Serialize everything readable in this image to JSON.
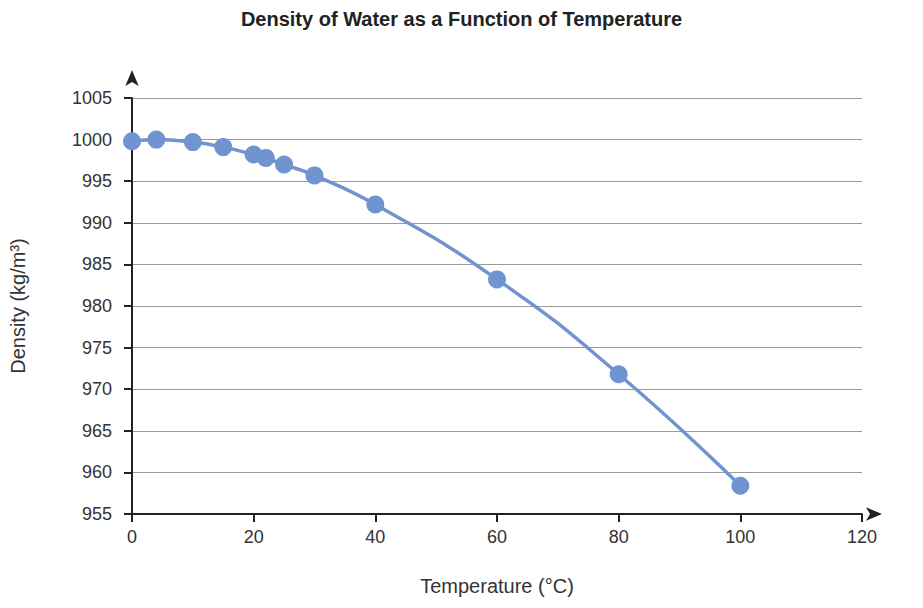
{
  "chart_data": {
    "type": "line",
    "title": "Density of Water as a Function of Temperature",
    "x_label": "Temperature (°C)",
    "y_label": "Density (kg/m³)",
    "x": [
      0,
      4,
      10,
      15,
      20,
      22,
      25,
      30,
      40,
      60,
      80,
      100
    ],
    "values": [
      999.8,
      1000.0,
      999.7,
      999.1,
      998.2,
      997.8,
      997.0,
      995.7,
      992.2,
      983.2,
      971.8,
      958.4
    ],
    "color": "#7094d0",
    "marker": "circle",
    "line_style": "smooth",
    "xlim": [
      0,
      120
    ],
    "xticks": [
      0,
      20,
      40,
      60,
      80,
      100,
      120
    ],
    "ylim": [
      955,
      1005
    ],
    "yticks": [
      955,
      960,
      965,
      970,
      975,
      980,
      985,
      990,
      995,
      1000,
      1005
    ],
    "grid": true
  }
}
